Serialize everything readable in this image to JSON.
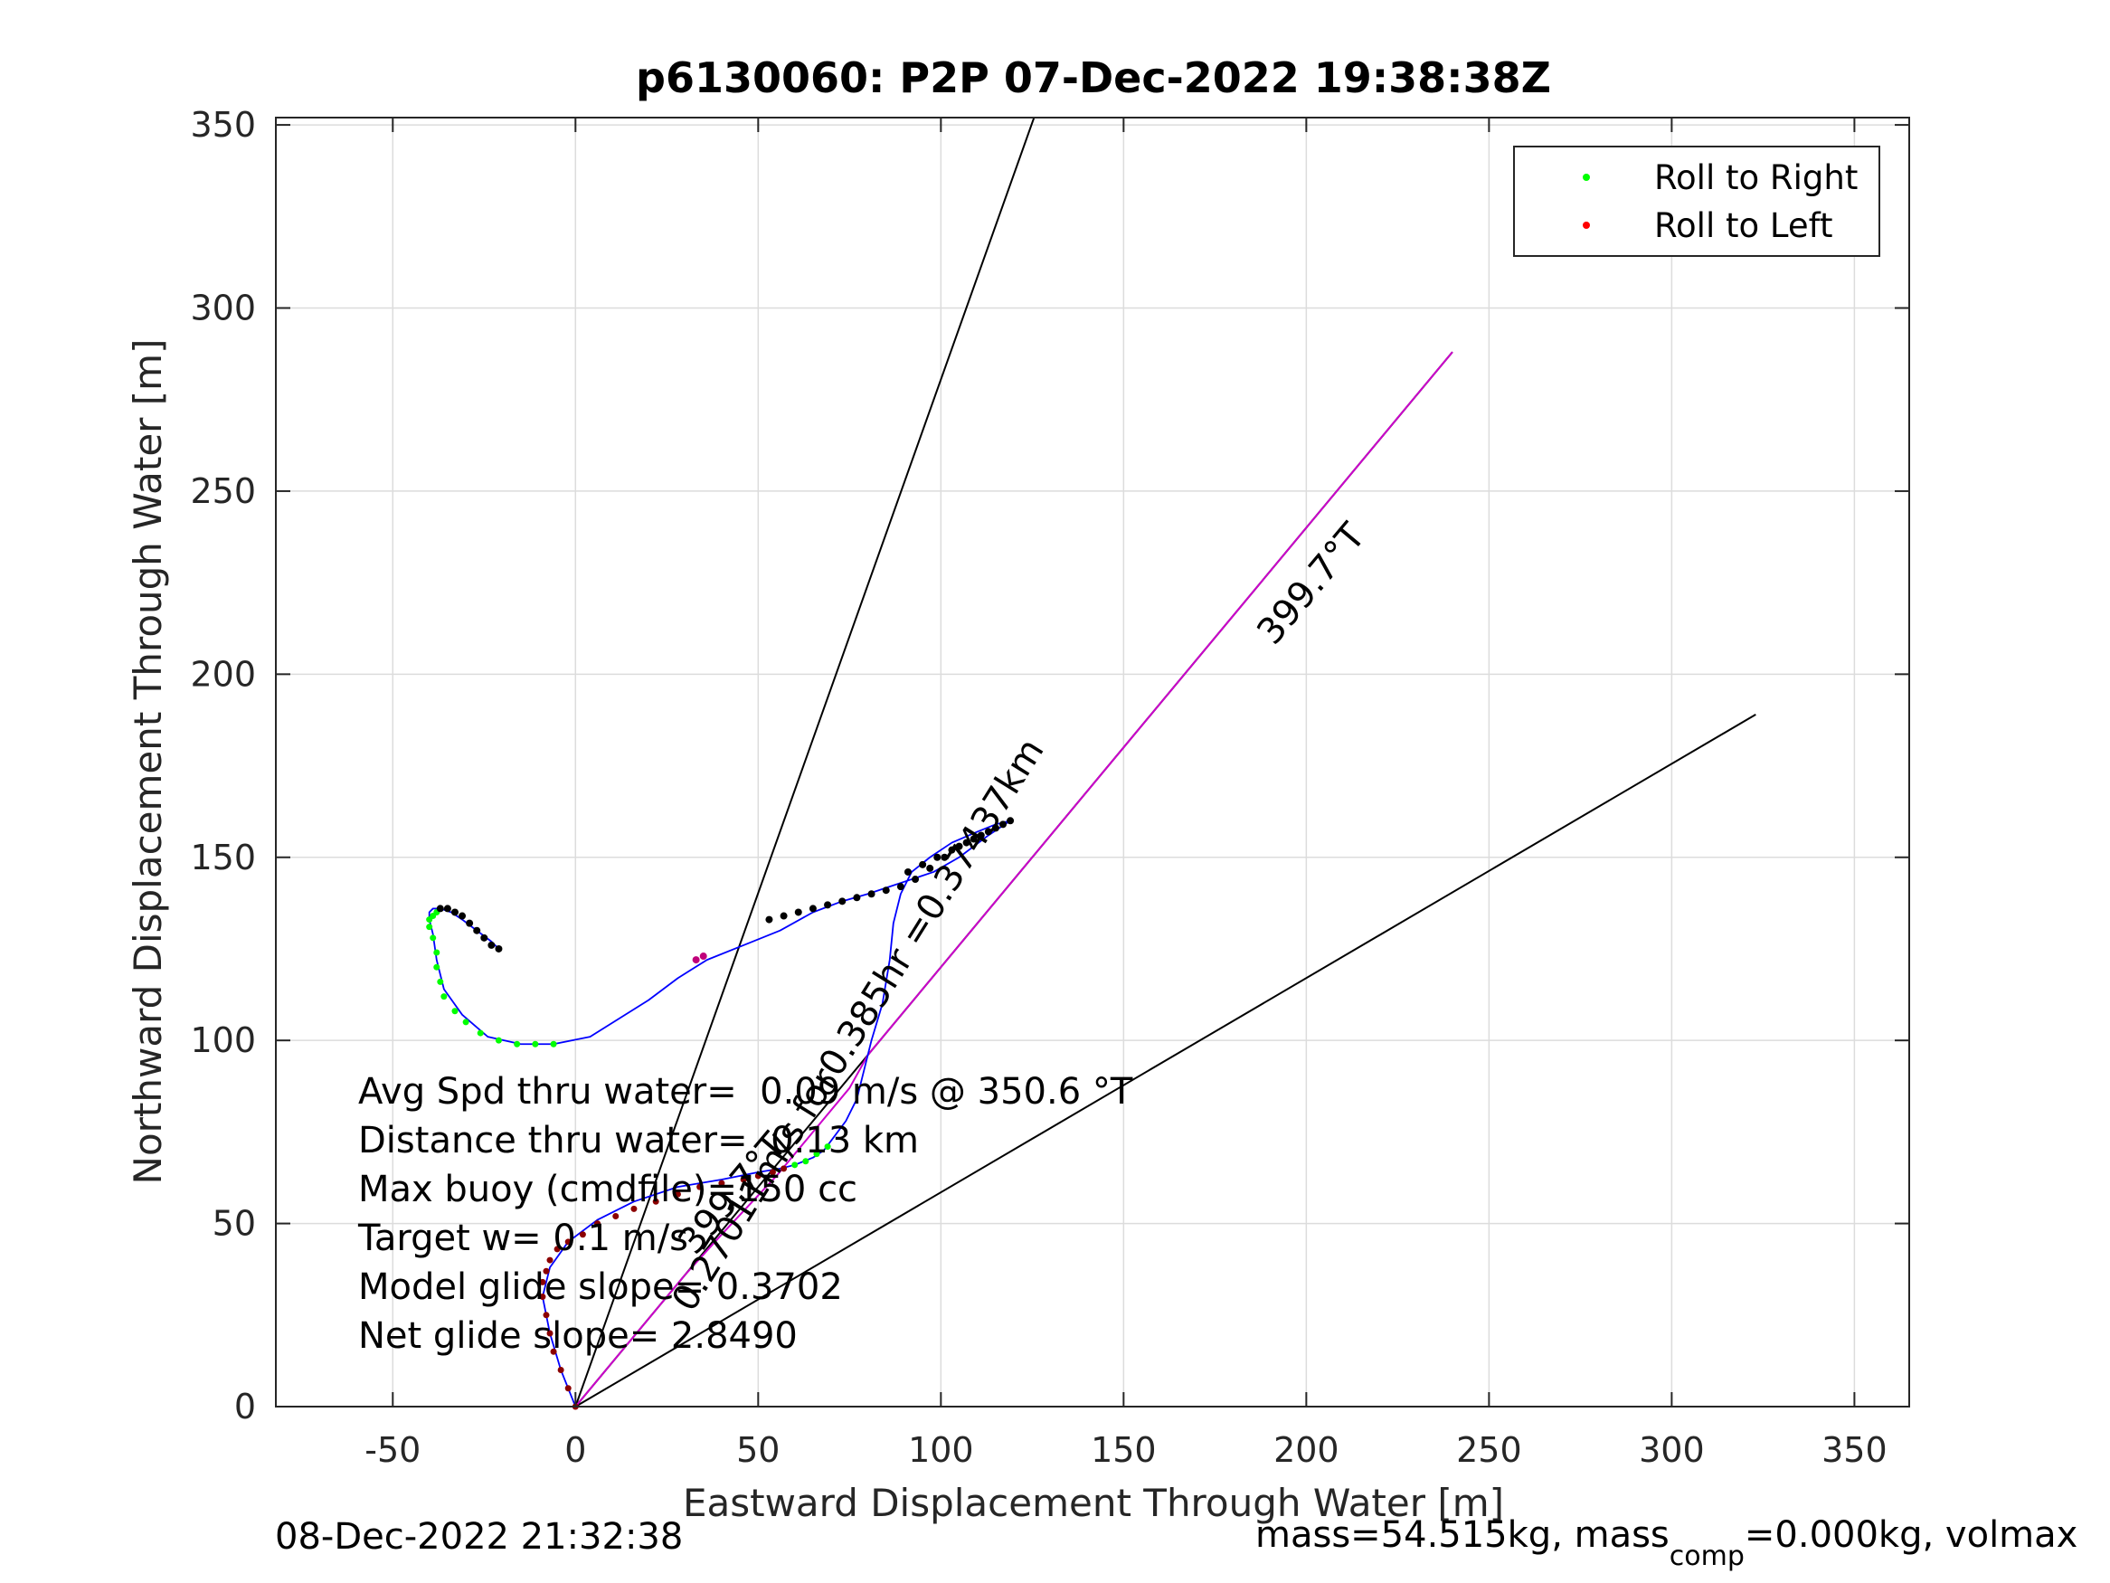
{
  "chart_data": {
    "type": "line",
    "title": "p6130060: P2P 07-Dec-2022 19:38:38Z",
    "xlabel": "Eastward Displacement Through Water [m]",
    "ylabel": "Northward Displacement Through Water [m]",
    "xlim": [
      -82,
      365
    ],
    "ylim": [
      0,
      352
    ],
    "xticks": [
      -50,
      0,
      50,
      100,
      150,
      200,
      250,
      300,
      350
    ],
    "yticks": [
      0,
      50,
      100,
      150,
      200,
      250,
      300,
      350
    ],
    "xtick_labels": [
      "-50",
      "0",
      "50",
      "100",
      "150",
      "200",
      "250",
      "300",
      "350"
    ],
    "ytick_labels": [
      "0",
      "50",
      "100",
      "150",
      "200",
      "250",
      "300",
      "350"
    ],
    "grid": true,
    "legend": {
      "position": "top-right",
      "entries": [
        {
          "label": "Roll to Right",
          "color": "#00ff00"
        },
        {
          "label": "Roll to Left",
          "color": "#ff0000"
        }
      ]
    },
    "reference_lines": [
      {
        "name": "wedge-line-1",
        "x": [
          0,
          125.5
        ],
        "y": [
          0,
          352
        ]
      },
      {
        "name": "wedge-line-2",
        "x": [
          0,
          323
        ],
        "y": [
          0,
          189
        ]
      },
      {
        "name": "heading-line",
        "x": [
          0,
          240
        ],
        "y": [
          0,
          288
        ]
      }
    ],
    "magenta_path": {
      "x": [
        0,
        10,
        20,
        30,
        40,
        55,
        65,
        75,
        80,
        90,
        100,
        110,
        120,
        130,
        140,
        150,
        160,
        170,
        180,
        190,
        200,
        210,
        220,
        230,
        240
      ],
      "y": [
        0,
        12,
        24,
        36,
        47,
        63,
        75,
        87,
        96,
        108,
        120,
        132,
        144,
        156,
        168,
        180,
        192,
        204,
        216,
        228,
        240,
        252,
        264,
        276,
        288
      ]
    },
    "blue_track": {
      "x": [
        0,
        -4,
        -7,
        -9,
        -7,
        -2,
        6,
        16,
        28,
        40,
        50,
        56,
        60,
        65,
        68,
        71,
        74,
        77,
        79,
        81,
        84,
        86,
        87,
        89,
        92,
        97,
        103,
        110,
        115,
        119,
        113,
        105,
        98,
        92,
        86,
        80,
        73,
        65,
        56,
        46,
        36,
        28,
        20,
        12,
        4,
        -6,
        -15,
        -24,
        -31,
        -36,
        -38,
        -39,
        -40,
        -40,
        -39,
        -37,
        -34,
        -31,
        -27,
        -23,
        -21
      ],
      "y": [
        0,
        10,
        20,
        30,
        38,
        45,
        51,
        56,
        60,
        62,
        64,
        65,
        66,
        68,
        70,
        74,
        78,
        84,
        92,
        100,
        110,
        122,
        132,
        140,
        146,
        150,
        154,
        157,
        159,
        160,
        156,
        150,
        146,
        144,
        142,
        140,
        138,
        135,
        130,
        126,
        122,
        117,
        111,
        106,
        101,
        99,
        99,
        101,
        107,
        114,
        122,
        129,
        133,
        135,
        136,
        136,
        135,
        133,
        130,
        127,
        125
      ]
    },
    "dive_points": {
      "x": [
        0,
        -2,
        -4,
        -6,
        -7,
        -8,
        -9,
        -9,
        -8,
        -7,
        -5,
        -2,
        2,
        6,
        11,
        16,
        22,
        28,
        34,
        40,
        46,
        50,
        54,
        57
      ],
      "y": [
        0,
        5,
        10,
        15,
        20,
        25,
        30,
        34,
        37,
        40,
        43,
        45,
        47,
        50,
        52,
        54,
        56,
        58,
        60,
        61,
        62,
        63,
        64,
        65
      ],
      "color": "#8b0000"
    },
    "climb_green_points": {
      "x": [
        -6,
        -11,
        -16,
        -21,
        -26,
        -30,
        -33,
        -36,
        -37,
        -38,
        -38,
        -39,
        -40,
        -40,
        -39,
        -38,
        60,
        63,
        66,
        69
      ],
      "y": [
        99,
        99,
        99,
        100,
        102,
        105,
        108,
        112,
        116,
        120,
        124,
        128,
        131,
        133,
        134,
        135,
        66,
        67,
        69,
        71
      ],
      "color": "#00ff00"
    },
    "black_points": {
      "x": [
        -37,
        -35,
        -33,
        -31,
        -29,
        -27,
        -25,
        -23,
        -21,
        53,
        57,
        61,
        65,
        69,
        73,
        77,
        81,
        85,
        89,
        93,
        97,
        101,
        105,
        109,
        113,
        117,
        119,
        115,
        111,
        107,
        103,
        99,
        95,
        91
      ],
      "y": [
        136,
        136,
        135,
        134,
        132,
        130,
        128,
        126,
        125,
        133,
        134,
        135,
        136,
        137,
        138,
        139,
        140,
        141,
        142,
        144,
        147,
        150,
        153,
        155,
        157,
        159,
        160,
        158,
        156,
        154,
        152,
        150,
        148,
        146
      ],
      "color": "#000000"
    },
    "magenta_points": {
      "x": [
        33,
        35
      ],
      "y": [
        122,
        123
      ],
      "color": "#c0007a"
    },
    "annotations": {
      "heading_label_upper": "399.7°T",
      "heading_label_lower": "399.7°T",
      "rotated_speed_label": "0.27011m/s for0.385hr =0.37437km",
      "stats_lines": [
        "Avg Spd thru water=  0.09 m/s @ 350.6 °T",
        "Distance thru water=  0.13 km",
        "Max buoy (cmdfile)=150 cc",
        "Target w= 0.1 m/s",
        "Model glide slope= 0.3702",
        "Net glide slope= 2.8490"
      ]
    },
    "footer": {
      "date": "08-Dec-2022 21:32:38",
      "mass_prefix": "mass=54.515kg, mass",
      "mass_subscript": "comp",
      "mass_suffix": "=0.000kg, volmax"
    }
  }
}
